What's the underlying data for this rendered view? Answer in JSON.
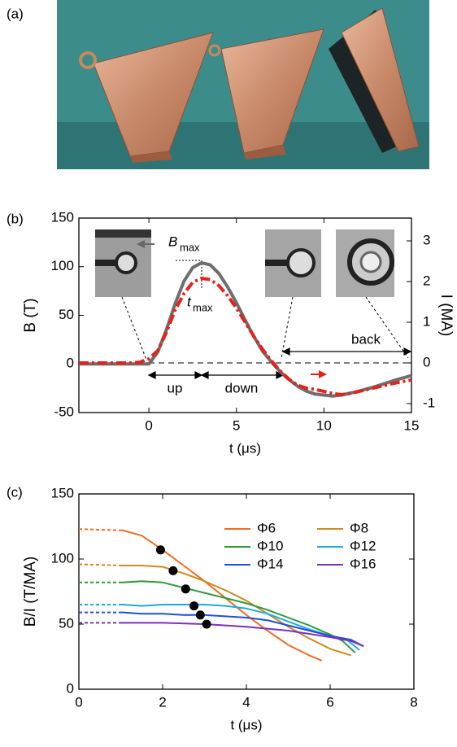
{
  "panel_a": {
    "label": "(a)"
  },
  "chart_data": [
    {
      "type": "line",
      "panel_label": "(b)",
      "x_label": "t (μs)",
      "y_label": "B (T)",
      "y2_label": "I (MA)",
      "xlim": [
        -4,
        15
      ],
      "xticks": [
        0,
        5,
        10,
        15
      ],
      "ylim": [
        -50,
        150
      ],
      "yticks": [
        -50,
        0,
        50,
        100,
        150
      ],
      "y2lim": [
        -1.22,
        3.56
      ],
      "y2ticks": [
        -1,
        0,
        1,
        2,
        3
      ],
      "x": [
        -4,
        -1,
        -0.5,
        0,
        0.5,
        1,
        1.5,
        2,
        2.5,
        3,
        3.5,
        4,
        4.5,
        5,
        5.5,
        6,
        6.5,
        7,
        7.5,
        8,
        8.5,
        9,
        9.5,
        10,
        10.5,
        11,
        11.5,
        12,
        13,
        14,
        15
      ],
      "series": [
        {
          "color": "#6e6e6e",
          "style": "solid",
          "values": [
            0,
            0,
            0,
            0,
            12,
            35,
            62,
            85,
            99,
            104,
            102,
            93,
            79,
            63,
            45,
            28,
            13,
            2,
            -8,
            -16,
            -23,
            -28,
            -31,
            -32,
            -33,
            -32,
            -30,
            -28,
            -23,
            -17,
            -12
          ]
        },
        {
          "color": "#e8201c",
          "style": "dashdot",
          "axis": "y2",
          "values": [
            0,
            0,
            0.02,
            0.1,
            0.3,
            0.75,
            1.3,
            1.7,
            1.98,
            2.08,
            2.05,
            1.9,
            1.65,
            1.35,
            1.0,
            0.65,
            0.33,
            0.05,
            -0.2,
            -0.4,
            -0.55,
            -0.62,
            -0.65,
            -0.7,
            -0.75,
            -0.78,
            -0.75,
            -0.7,
            -0.6,
            -0.5,
            -0.42
          ]
        }
      ],
      "annotations": [
        "up",
        "down",
        "back"
      ],
      "peak_labels": [
        [
          "B",
          "max"
        ],
        [
          "t",
          "max"
        ]
      ]
    },
    {
      "type": "line",
      "panel_label": "(c)",
      "x_label": "t (μs)",
      "y_label": "B/I (T/MA)",
      "xlim": [
        0,
        8
      ],
      "xticks": [
        0,
        2,
        4,
        6,
        8
      ],
      "ylim": [
        0,
        150
      ],
      "yticks": [
        0,
        50,
        100,
        150
      ],
      "dashed_until": 1.05,
      "legend": "upper right",
      "series": [
        {
          "name": "Φ6",
          "color": "#f26b21",
          "x": [
            0,
            1.05,
            1.5,
            2,
            2.5,
            3,
            3.5,
            4,
            4.5,
            5,
            5.5,
            5.8
          ],
          "values": [
            123,
            122,
            118,
            107,
            95,
            83,
            70,
            57,
            45,
            34,
            26,
            22
          ]
        },
        {
          "name": "Φ8",
          "color": "#d08a1e",
          "x": [
            0,
            1.05,
            1.5,
            2,
            2.3,
            2.5,
            3,
            3.5,
            4,
            4.5,
            5,
            5.5,
            6,
            6.5
          ],
          "values": [
            96,
            95,
            95,
            94,
            91,
            89,
            83,
            76,
            68,
            58,
            48,
            39,
            31,
            26
          ]
        },
        {
          "name": "Φ10",
          "color": "#2e9a3a",
          "x": [
            0,
            1.05,
            1.5,
            2,
            2.5,
            3,
            3.5,
            4,
            4.5,
            5,
            5.5,
            6,
            6.3,
            6.6
          ],
          "values": [
            82,
            82,
            83,
            82,
            78,
            74,
            70,
            66,
            61,
            55,
            49,
            42,
            37,
            28
          ]
        },
        {
          "name": "Φ12",
          "color": "#1fa8e6",
          "x": [
            0,
            1.05,
            1.5,
            2,
            2.5,
            3,
            3.5,
            4,
            4.5,
            5,
            5.5,
            6,
            6.4,
            6.7
          ],
          "values": [
            65,
            65,
            64,
            65,
            65,
            65,
            64,
            62,
            58,
            52,
            46,
            41,
            38,
            30
          ]
        },
        {
          "name": "Φ14",
          "color": "#1f4fd8",
          "x": [
            0,
            1.05,
            1.5,
            2,
            2.5,
            3,
            3.5,
            4,
            4.5,
            5,
            5.5,
            6,
            6.5,
            6.8
          ],
          "values": [
            59,
            59,
            58,
            58,
            57,
            57,
            56,
            55,
            53,
            49,
            45,
            41,
            38,
            33
          ]
        },
        {
          "name": "Φ16",
          "color": "#7b2fbf",
          "x": [
            0,
            1.05,
            2,
            3,
            4,
            5,
            6,
            6.5,
            6.8
          ],
          "values": [
            51,
            51,
            51,
            50,
            48,
            45,
            40,
            37,
            33
          ]
        }
      ],
      "points": {
        "color": "#000000",
        "x": [
          1.95,
          2.25,
          2.55,
          2.75,
          2.9,
          3.05
        ],
        "values": [
          107,
          91,
          77,
          64,
          57,
          50
        ]
      }
    }
  ]
}
